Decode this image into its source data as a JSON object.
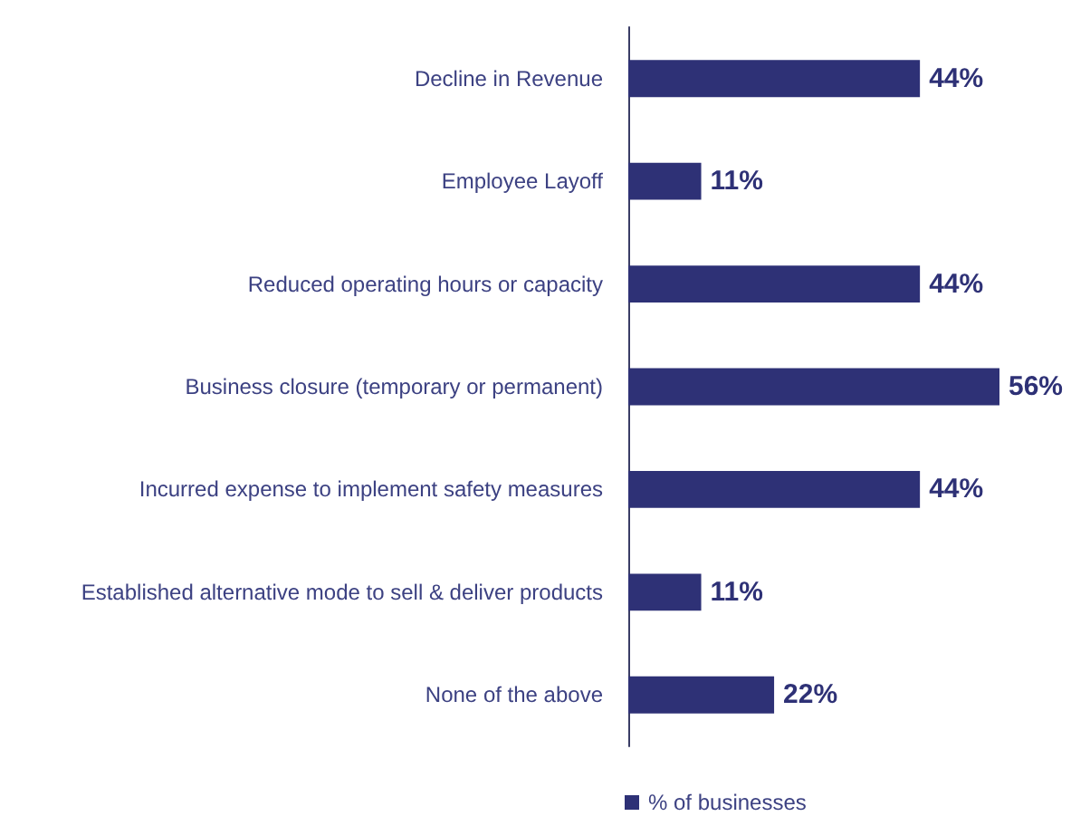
{
  "chart_data": {
    "type": "bar",
    "orientation": "horizontal",
    "categories": [
      "Decline in Revenue",
      "Employee Layoff",
      "Reduced operating hours or capacity",
      "Business closure (temporary or permanent)",
      "Incurred expense to implement safety measures",
      "Established alternative mode to sell & deliver products",
      "None of the above"
    ],
    "series": [
      {
        "name": "% of businesses",
        "color": "#2e3176",
        "values": [
          44,
          11,
          44,
          56,
          44,
          11,
          22
        ],
        "value_labels": [
          "44%",
          "11%",
          "44%",
          "56%",
          "44%",
          "11%",
          "22%"
        ]
      }
    ],
    "legend": "bottom",
    "grid": false
  }
}
